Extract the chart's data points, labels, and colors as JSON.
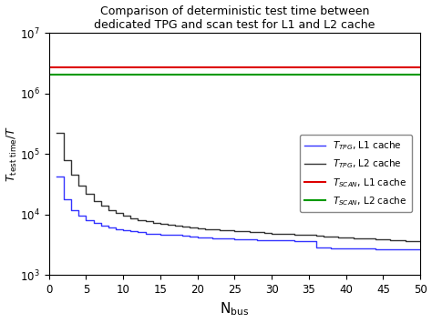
{
  "title_line1": "Comparison of deterministic test time between",
  "title_line2": "dedicated TPG and scan test for L1 and L2 cache",
  "xlabel": "N$_\\mathrm{bus}$",
  "ylabel": "$T_\\mathrm{test\\ time}/T$",
  "xlim": [
    0,
    50
  ],
  "scan_L1_value": 2700000,
  "scan_L2_value": 2050000,
  "color_tpg_L1": "#3333ff",
  "color_tpg_L2": "#333333",
  "color_scan_L1": "#dd0000",
  "color_scan_L2": "#009900",
  "legend_entries": [
    "$T_{TPG}$, L1 cache",
    "$T_{TPG}$, L2 cache",
    "$T_{SCAN}$, L1 cache",
    "$T_{SCAN}$, L2 cache"
  ],
  "background_color": "#ffffff",
  "tpg_L1_x": [
    1,
    2,
    3,
    4,
    5,
    6,
    7,
    8,
    9,
    10,
    11,
    12,
    13,
    14,
    15,
    16,
    17,
    18,
    19,
    20,
    21,
    22,
    23,
    24,
    25,
    26,
    27,
    28,
    29,
    30,
    31,
    32,
    33,
    34,
    35,
    36,
    37,
    38,
    39,
    40,
    41,
    42,
    43,
    44,
    45,
    46,
    47,
    48,
    49,
    50
  ],
  "tpg_L1_y": [
    43000,
    18000,
    12000,
    9500,
    8000,
    7200,
    6600,
    6200,
    5800,
    5500,
    5300,
    5100,
    4900,
    4800,
    4700,
    4600,
    4600,
    4500,
    4300,
    4200,
    4150,
    4100,
    4050,
    4000,
    3950,
    3900,
    3850,
    3800,
    3780,
    3750,
    3730,
    3720,
    3700,
    3690,
    3680,
    2900,
    2850,
    2800,
    2780,
    2760,
    2750,
    2740,
    2730,
    2720,
    2710,
    2700,
    2700,
    2700,
    2700,
    2700
  ],
  "tpg_L2_x": [
    1,
    2,
    3,
    4,
    5,
    6,
    7,
    8,
    9,
    10,
    11,
    12,
    13,
    14,
    15,
    16,
    17,
    18,
    19,
    20,
    21,
    22,
    23,
    24,
    25,
    26,
    27,
    28,
    29,
    30,
    31,
    32,
    33,
    34,
    35,
    36,
    37,
    38,
    39,
    40,
    41,
    42,
    43,
    44,
    45,
    46,
    47,
    48,
    49,
    50
  ],
  "tpg_L2_y": [
    220000,
    80000,
    45000,
    30000,
    22000,
    17000,
    14000,
    12000,
    10500,
    9500,
    8800,
    8200,
    7700,
    7300,
    7000,
    6700,
    6500,
    6300,
    6100,
    6000,
    5800,
    5700,
    5600,
    5500,
    5400,
    5300,
    5200,
    5100,
    5000,
    4900,
    4850,
    4800,
    4700,
    4650,
    4600,
    4500,
    4350,
    4300,
    4250,
    4200,
    4100,
    4050,
    4000,
    3950,
    3900,
    3800,
    3750,
    3700,
    3650,
    3600
  ]
}
